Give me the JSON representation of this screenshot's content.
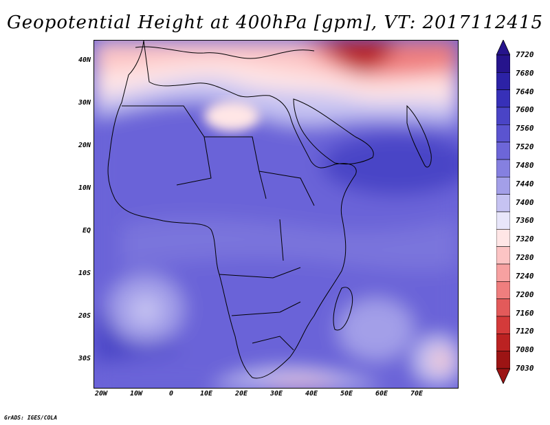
{
  "title": "Geopotential Height at 400hPa [gpm], VT: 2017112415",
  "lat_labels": [
    "40N",
    "30N",
    "20N",
    "10N",
    "EQ",
    "10S",
    "20S",
    "30S"
  ],
  "lon_labels": [
    "20W",
    "10W",
    "0",
    "10E",
    "20E",
    "30E",
    "40E",
    "50E",
    "60E",
    "70E"
  ],
  "colorbar": {
    "levels": [
      "7720",
      "7680",
      "7640",
      "7600",
      "7560",
      "7520",
      "7480",
      "7440",
      "7400",
      "7360",
      "7320",
      "7280",
      "7240",
      "7200",
      "7160",
      "7120",
      "7080",
      "7030"
    ],
    "colors": [
      "#26148c",
      "#2c22a6",
      "#3730b8",
      "#4a44c6",
      "#5b54d0",
      "#6d66d8",
      "#8580e0",
      "#a39fe8",
      "#c6c3f2",
      "#e8e6fa",
      "#ffe6e6",
      "#fcc4c4",
      "#f7a1a1",
      "#ef7e7e",
      "#e35a5a",
      "#d43a3a",
      "#bb2222",
      "#9c1414"
    ]
  },
  "credit": "GrADS: IGES/COLA"
}
